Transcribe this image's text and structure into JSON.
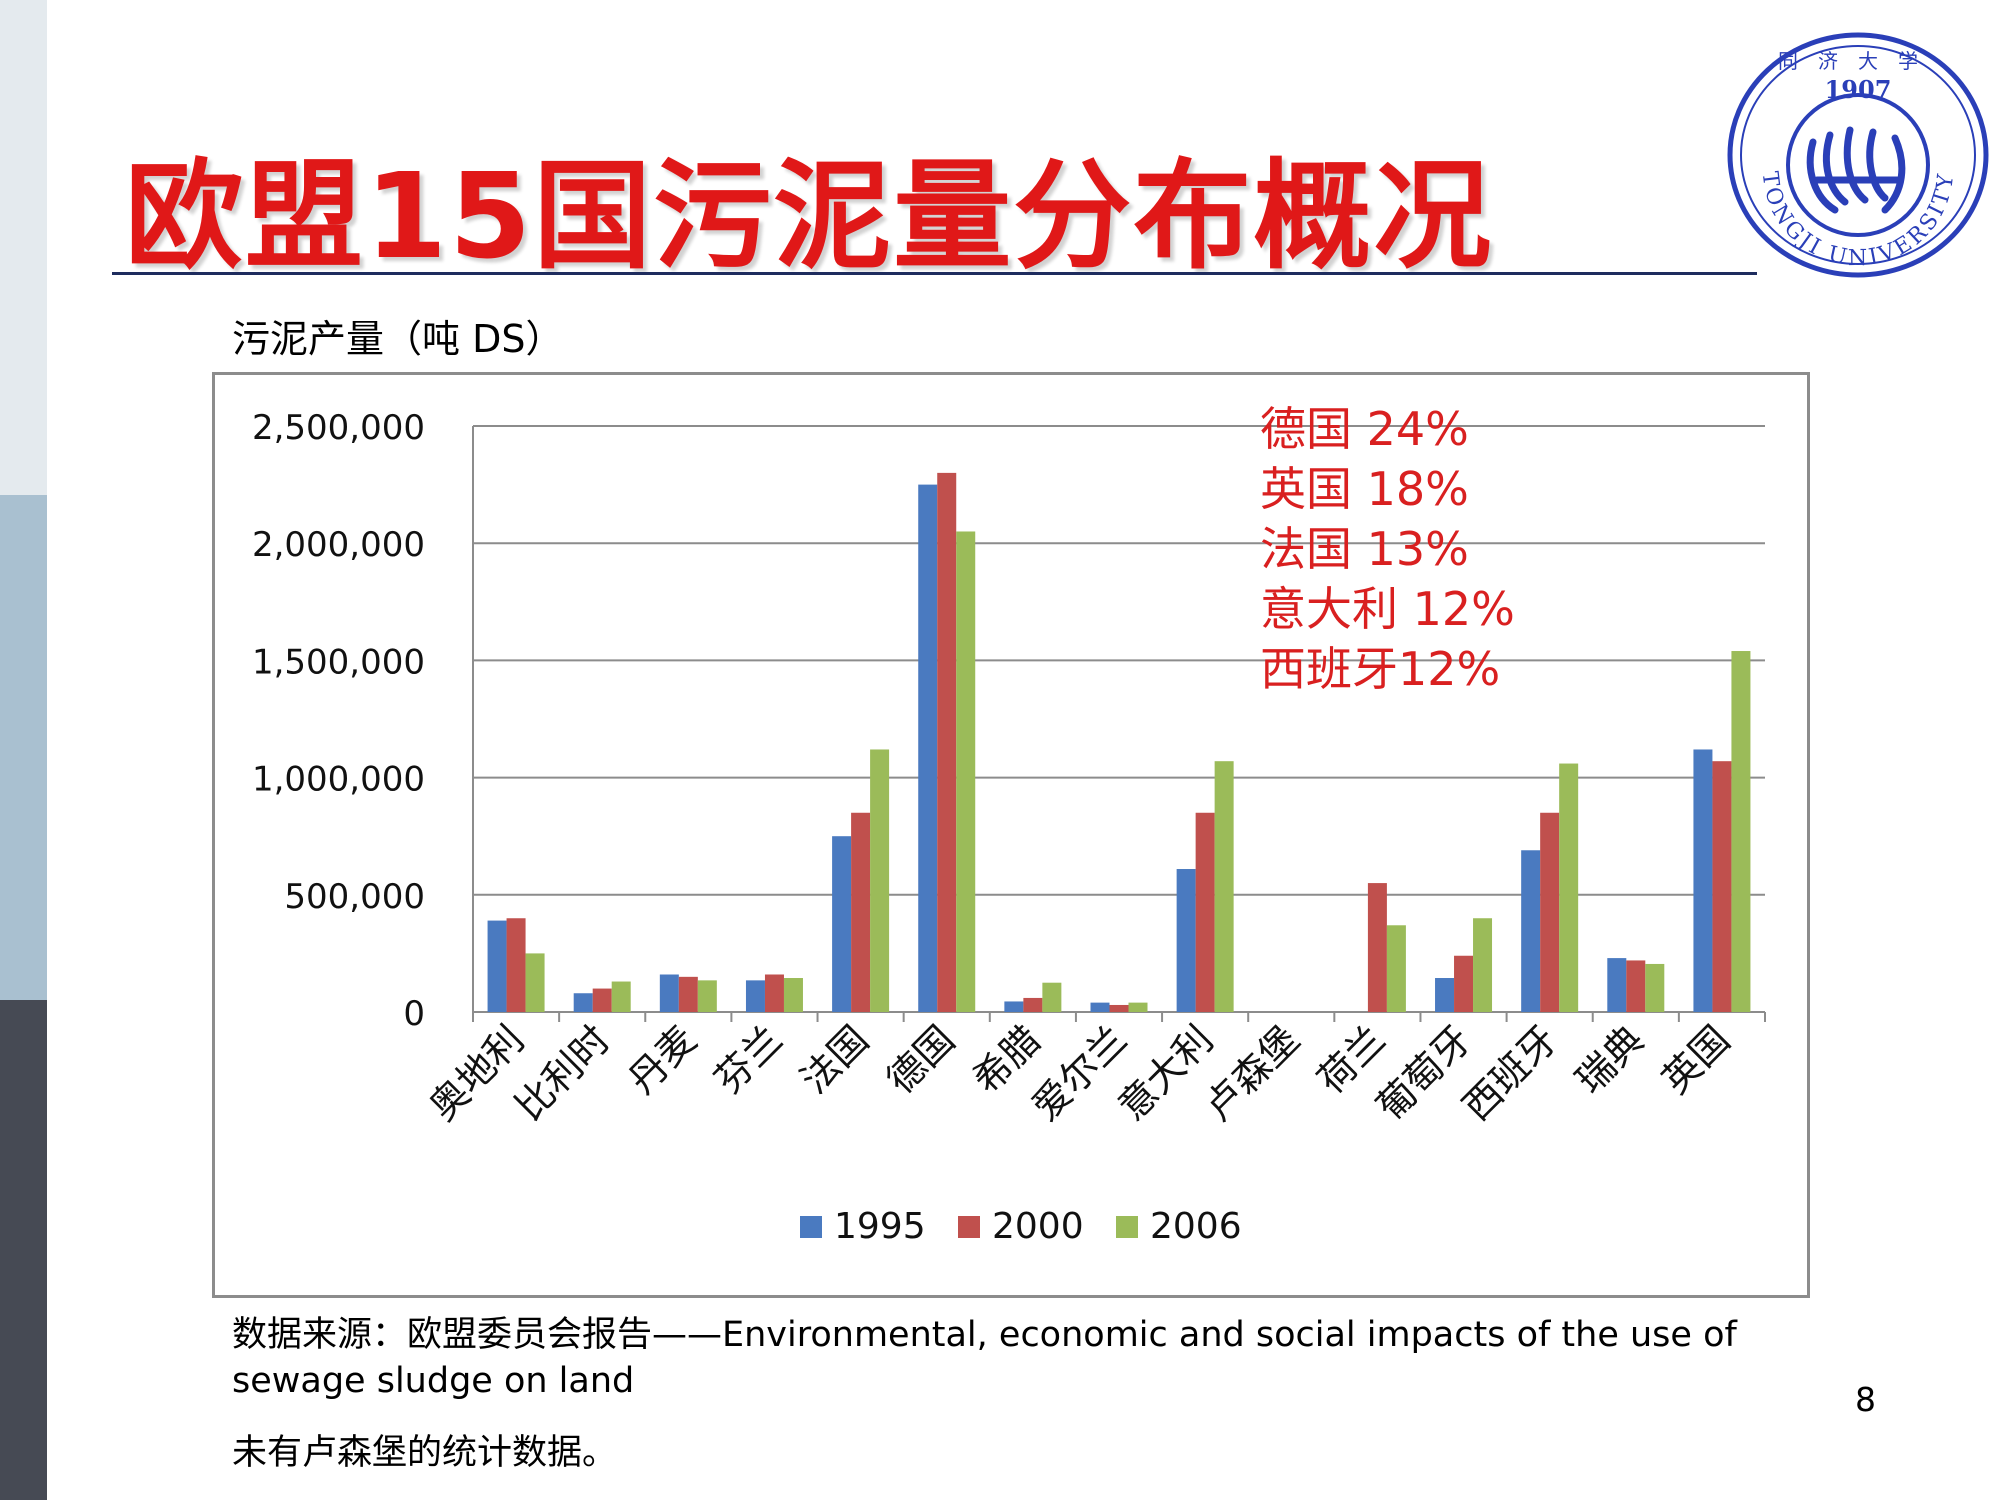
{
  "slide": {
    "title": "欧盟15国污泥量分布概况",
    "page_number": "8",
    "source_note": "数据来源：欧盟委员会报告——Environmental, economic and social impacts of the use of sewage sludge on land",
    "footnote": "未有卢森堡的统计数据。"
  },
  "logo": {
    "year": "1907",
    "university": "TONGJI UNIVERSITY",
    "seal_chars": "同济大学"
  },
  "colors": {
    "title": "#e01818",
    "series_1995": "#4a7ac0",
    "series_2000": "#c0504d",
    "series_2006": "#9bbb59",
    "annotation": "#d92020",
    "logo_blue": "#2a3fb8"
  },
  "chart_data": {
    "type": "bar",
    "ylabel": "污泥产量（吨 DS）",
    "categories": [
      "奥地利",
      "比利时",
      "丹麦",
      "芬兰",
      "法国",
      "德国",
      "希腊",
      "爱尔兰",
      "意大利",
      "卢森堡",
      "荷兰",
      "葡萄牙",
      "西班牙",
      "瑞典",
      "英国"
    ],
    "series": [
      {
        "name": "1995",
        "values": [
          390000,
          80000,
          160000,
          135000,
          750000,
          2250000,
          45000,
          40000,
          610000,
          null,
          null,
          145000,
          690000,
          230000,
          1120000
        ]
      },
      {
        "name": "2000",
        "values": [
          400000,
          100000,
          150000,
          160000,
          850000,
          2300000,
          60000,
          30000,
          850000,
          null,
          550000,
          240000,
          850000,
          220000,
          1070000
        ]
      },
      {
        "name": "2006",
        "values": [
          250000,
          130000,
          135000,
          145000,
          1120000,
          2050000,
          125000,
          40000,
          1070000,
          null,
          370000,
          400000,
          1060000,
          205000,
          1540000
        ]
      }
    ],
    "ylim": [
      0,
      2500000
    ],
    "yticks": [
      0,
      500000,
      1000000,
      1500000,
      2000000,
      2500000
    ],
    "ytick_labels": [
      "0",
      "500,000",
      "1,000,000",
      "1,500,000",
      "2,000,000",
      "2,500,000"
    ],
    "grid": true,
    "legend_position": "bottom",
    "annotations": [
      "德国 24%",
      "英国 18%",
      "法国 13%",
      "意大利 12%",
      "西班牙12%"
    ]
  }
}
